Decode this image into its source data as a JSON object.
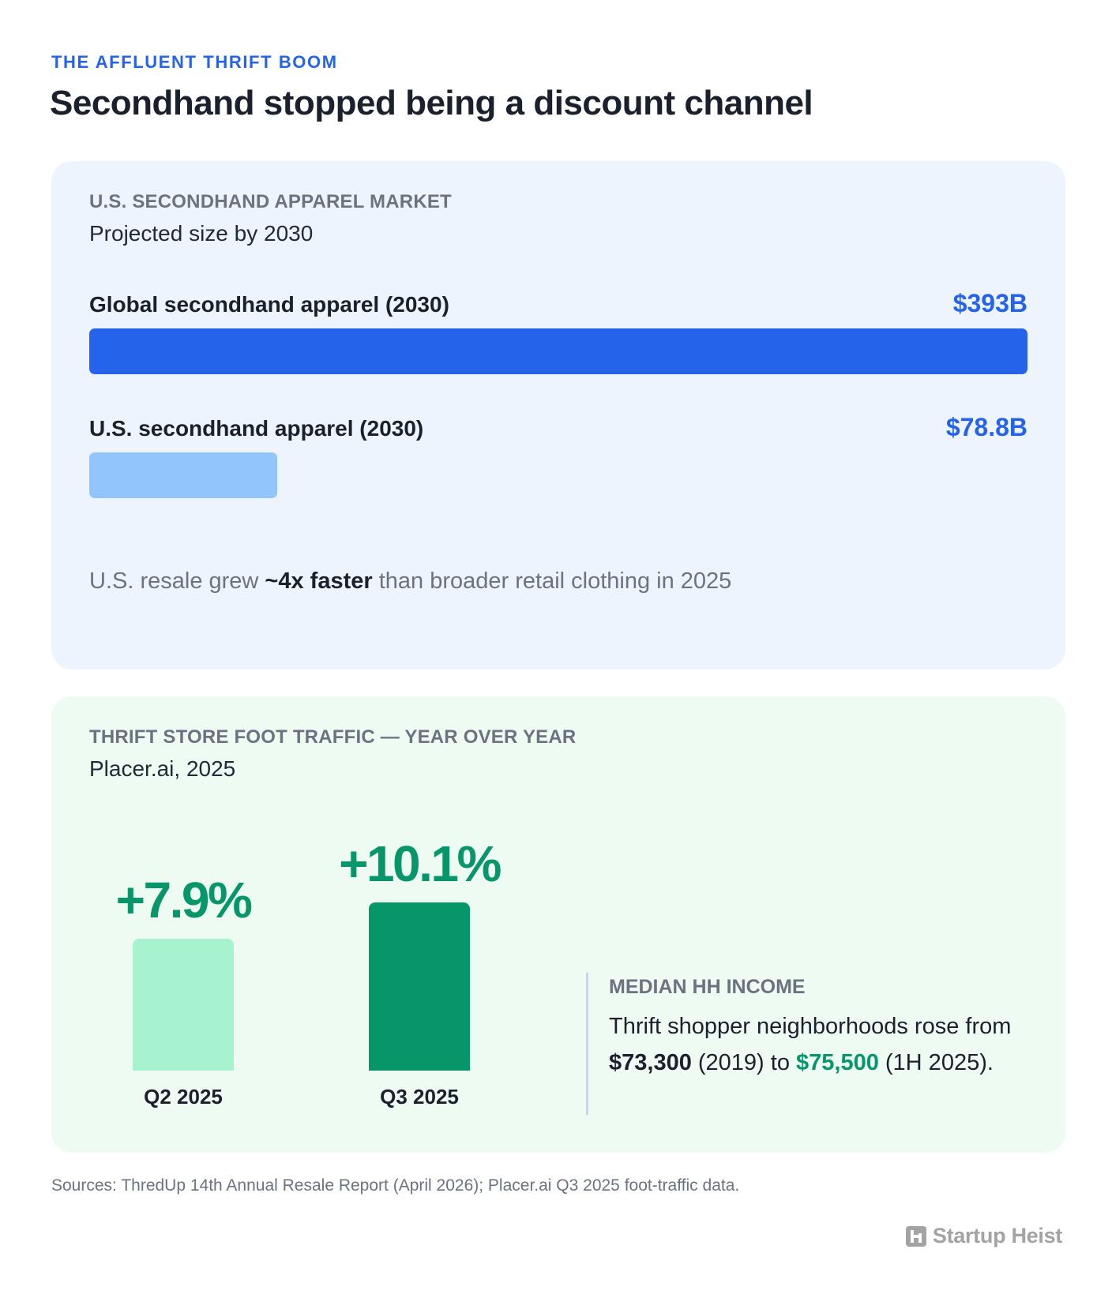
{
  "header": {
    "kicker": "THE AFFLUENT THRIFT BOOM",
    "headline": "Secondhand stopped being a discount channel"
  },
  "market_card": {
    "eyebrow": "U.S. SECONDHAND APPAREL MARKET",
    "subtitle": "Projected size by 2030",
    "note_pre": "U.S. resale grew ",
    "note_bold": "~4x faster",
    "note_post": " than broader retail clothing in 2025"
  },
  "traffic_card": {
    "eyebrow": "THRIFT STORE FOOT TRAFFIC — YEAR OVER YEAR",
    "subtitle": "Placer.ai, 2025",
    "income_eyebrow": "MEDIAN HH INCOME",
    "income_t1": "Thrift shopper neighborhoods rose from ",
    "income_v1": "$73,300",
    "income_t2": " (2019) to ",
    "income_v2": "$75,500",
    "income_t3": " (1H 2025)."
  },
  "footer": {
    "sources": "Sources: ThredUp 14th Annual Resale Report (April 2026); Placer.ai Q3 2025 foot-traffic data.",
    "brand": "Startup Heist"
  },
  "colors": {
    "accent_blue": "#2563eb",
    "light_blue": "#93c5fd",
    "accent_green": "#069669",
    "light_green": "#a7f3d0"
  },
  "chart_data": [
    {
      "type": "bar",
      "orientation": "horizontal",
      "categories": [
        "Global secondhand apparel (2030)",
        "U.S. secondhand apparel (2030)"
      ],
      "values": [
        393,
        78.8
      ],
      "value_labels": [
        "$393B",
        "$78.8B"
      ],
      "unit": "USD billions",
      "colors": [
        "#2563eb",
        "#93c5fd"
      ]
    },
    {
      "type": "bar",
      "orientation": "vertical",
      "categories": [
        "Q2 2025",
        "Q3 2025"
      ],
      "values": [
        7.9,
        10.1
      ],
      "value_labels": [
        "+7.9%",
        "+10.1%"
      ],
      "unit": "percent YoY",
      "colors": [
        "#a7f3d0",
        "#069669"
      ]
    }
  ]
}
